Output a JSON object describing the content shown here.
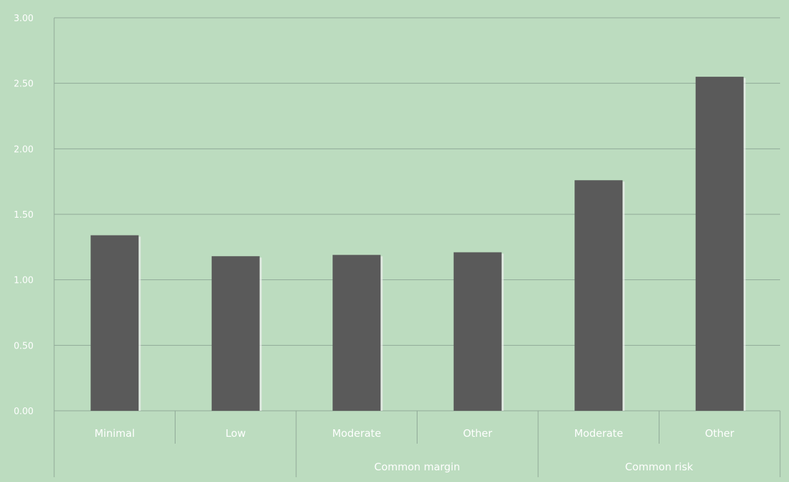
{
  "chart_data": {
    "type": "bar",
    "categories": [
      "Minimal",
      "Low",
      "Moderate",
      "Other",
      "Moderate",
      "Other"
    ],
    "groups": [
      {
        "label": "",
        "span": [
          0,
          1
        ]
      },
      {
        "label": "Common margin",
        "span": [
          2,
          3
        ]
      },
      {
        "label": "Common risk",
        "span": [
          4,
          5
        ]
      }
    ],
    "values": [
      1.34,
      1.18,
      1.19,
      1.21,
      1.76,
      2.55
    ],
    "ylim": [
      0,
      3
    ],
    "yticks": [
      "0.00",
      "0.50",
      "1.00",
      "1.50",
      "2.00",
      "2.50",
      "3.00"
    ],
    "grid": true,
    "colors": {
      "background": "#bcdcbf",
      "bar": "#5a5a5a",
      "bar_shadow": "#f0f0f0",
      "gridline": "#8fa897",
      "text": "#ffffff"
    }
  }
}
